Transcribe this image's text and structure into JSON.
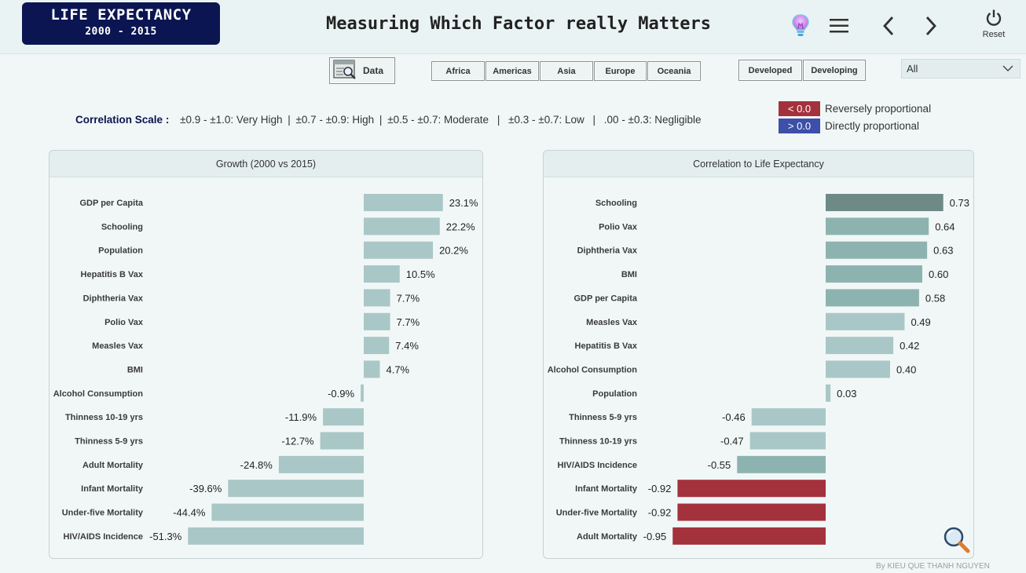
{
  "header": {
    "logo_line1": "LIFE EXPECTANCY",
    "logo_line2": "2000 - 2015",
    "title": "Measuring Which Factor really Matters",
    "icons": [
      "lightbulb-icon",
      "menu-icon",
      "chevron-left-icon",
      "chevron-right-icon",
      "power-icon"
    ],
    "reset_label": "Reset"
  },
  "toolbar": {
    "data_label": "Data",
    "regions": [
      "Africa",
      "Americas",
      "Asia",
      "Europe",
      "Oceania"
    ],
    "status": [
      "Developed",
      "Developing"
    ],
    "dropdown_value": "All"
  },
  "scale": {
    "label": "Correlation Scale",
    "sep": ":",
    "items": [
      "±0.9 - ±1.0: Very High",
      "±0.7 - ±0.9: High",
      "±0.5 - ±0.7: Moderate",
      "±0.3 - ±0.7: Low",
      ".00 - ±0.3: Negligible"
    ]
  },
  "legend": {
    "negative_label": "< 0.0",
    "negative_text": "Reversely proportional",
    "negative_color": "#a4323d",
    "positive_label": "> 0.0",
    "positive_text": "Directly proportional",
    "positive_color": "#3d4fa8"
  },
  "chart_data": [
    {
      "type": "bar",
      "orientation": "horizontal",
      "title": "Growth (2000 vs 2015)",
      "categories": [
        "GDP per Capita",
        "Schooling",
        "Population",
        "Hepatitis B Vax",
        "Diphtheria Vax",
        "Polio Vax",
        "Measles Vax",
        "BMI",
        "Alcohol Consumption",
        "Thinness 10-19 yrs",
        "Thinness 5-9 yrs",
        "Adult Mortality",
        "Infant Mortality",
        "Under-five Mortality",
        "HIV/AIDS Incidence"
      ],
      "values": [
        23.1,
        22.2,
        20.2,
        10.5,
        7.7,
        7.7,
        7.4,
        4.7,
        -0.9,
        -11.9,
        -12.7,
        -24.8,
        -39.6,
        -44.4,
        -51.3
      ],
      "labels": [
        "23.1%",
        "22.2%",
        "20.2%",
        "10.5%",
        "7.7%",
        "7.7%",
        "7.4%",
        "4.7%",
        "-0.9%",
        "-11.9%",
        "-12.7%",
        "-24.8%",
        "-39.6%",
        "-44.4%",
        "-51.3%"
      ],
      "bar_color": "#a9c7c6"
    },
    {
      "type": "bar",
      "orientation": "horizontal",
      "title": "Correlation to Life Expectancy",
      "categories": [
        "Schooling",
        "Polio Vax",
        "Diphtheria Vax",
        "BMI",
        "GDP per Capita",
        "Measles Vax",
        "Hepatitis B Vax",
        "Alcohol Consumption",
        "Population",
        "Thinness 5-9 yrs",
        "Thinness 10-19 yrs",
        "HIV/AIDS Incidence",
        "Infant Mortality",
        "Under-five Mortality",
        "Adult Mortality"
      ],
      "values": [
        0.73,
        0.64,
        0.63,
        0.6,
        0.58,
        0.49,
        0.42,
        0.4,
        0.03,
        -0.46,
        -0.47,
        -0.55,
        -0.92,
        -0.92,
        -0.95
      ],
      "labels": [
        "0.73",
        "0.64",
        "0.63",
        "0.60",
        "0.58",
        "0.49",
        "0.42",
        "0.40",
        "0.03",
        "-0.46",
        "-0.47",
        "-0.55",
        "-0.92",
        "-0.92",
        "-0.95"
      ],
      "colors": [
        "#6e8a86",
        "#8db3b0",
        "#8db3b0",
        "#8db3b0",
        "#8db3b0",
        "#a9c7c6",
        "#a9c7c6",
        "#a9c7c6",
        "#a9c7c6",
        "#a9c7c6",
        "#a9c7c6",
        "#8db3b0",
        "#a4323d",
        "#a4323d",
        "#a4323d"
      ]
    }
  ],
  "footer": {
    "credit": "By KIEU QUE THANH NGUYEN",
    "zoom_icon": "magnifier-icon"
  }
}
